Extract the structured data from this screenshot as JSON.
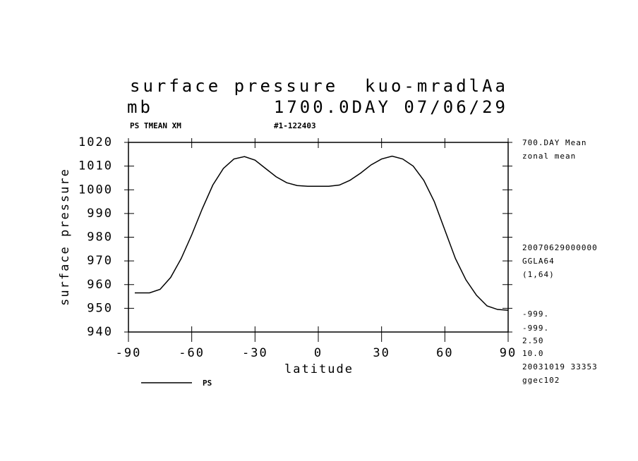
{
  "chart_data": {
    "type": "line",
    "title": "surface pressure",
    "experiment": "kuo-mradlAa",
    "units": "mb",
    "time": "1700.0DAY 07/06/29",
    "variable_info": "PS TMEAN XM",
    "run_id": "#1-122403",
    "x_label": "latitude",
    "y_label": "surface pressure",
    "x": [
      -87,
      -80,
      -75,
      -70,
      -65,
      -60,
      -55,
      -50,
      -45,
      -40,
      -35,
      -30,
      -25,
      -20,
      -15,
      -10,
      -5,
      0,
      5,
      10,
      15,
      20,
      25,
      30,
      35,
      40,
      45,
      50,
      55,
      60,
      65,
      70,
      75,
      80,
      85,
      90
    ],
    "series": [
      {
        "name": "PS",
        "color": "#000000",
        "values": [
          956.5,
          956.5,
          958,
          963,
          971,
          981,
          992,
          1002,
          1009,
          1013,
          1014,
          1012.5,
          1009,
          1005.5,
          1003,
          1001.8,
          1001.5,
          1001.5,
          1001.5,
          1002,
          1004,
          1007,
          1010.5,
          1013,
          1014.2,
          1013,
          1010,
          1004,
          995,
          983,
          971,
          962,
          955.5,
          951,
          949.5,
          949.2
        ]
      }
    ],
    "xlim": [
      -90,
      90
    ],
    "xticks": [
      -90,
      -60,
      -30,
      0,
      30,
      60,
      90
    ],
    "ylim": [
      940,
      1020
    ],
    "yticks": [
      940,
      950,
      960,
      970,
      980,
      990,
      1000,
      1010,
      1020
    ],
    "annotations": [
      "700.DAY Mean",
      "zonal mean",
      "20070629000000",
      "GGLA64",
      "(1,64)",
      "-999.",
      "-999.",
      "2.50",
      "10.0",
      "20031019  33353",
      "ggec102"
    ]
  }
}
